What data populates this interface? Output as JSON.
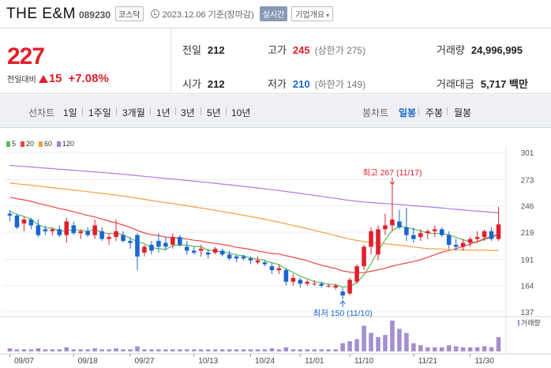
{
  "header": {
    "name": "THE E&M",
    "code": "089230",
    "market": "코스닥",
    "timestamp": "2023.12.06 기준(장마감)",
    "live_button": "실시간",
    "info_dropdown": "기업개요"
  },
  "summary": {
    "price": "227",
    "change_label": "전일대비",
    "change_value": "15",
    "change_pct": "+7.08%",
    "prev_close": {
      "label": "전일",
      "value": "212"
    },
    "open": {
      "label": "시가",
      "value": "212"
    },
    "high": {
      "label": "고가",
      "value": "245",
      "sub": "(상한가 275)"
    },
    "low": {
      "label": "저가",
      "value": "210",
      "sub": "(하한가 149)"
    },
    "volume": {
      "label": "거래량",
      "value": "24,996,995"
    },
    "amount": {
      "label": "거래대금",
      "value": "5,717 백만"
    }
  },
  "tabs": {
    "line_chart": "선차트",
    "periods": [
      "1일",
      "1주일",
      "3개월",
      "1년",
      "3년",
      "5년",
      "10년"
    ],
    "candle_chart": "봉차트",
    "candle_periods": [
      "일봉",
      "주봉",
      "월봉"
    ],
    "active_candle": "일봉"
  },
  "chart_data": {
    "type": "candlestick",
    "moving_averages": [
      {
        "name": "5",
        "color": "#5cb85c"
      },
      {
        "name": "20",
        "color": "#ee4444"
      },
      {
        "name": "60",
        "color": "#f0a040"
      },
      {
        "name": "120",
        "color": "#a77de0"
      }
    ],
    "y_ticks": [
      "301",
      "273",
      "246",
      "219",
      "191",
      "164",
      "137"
    ],
    "y_range": [
      137,
      301
    ],
    "x_ticks": [
      "09/07",
      "09/18",
      "09/27",
      "10/13",
      "10/24",
      "11/01",
      "11/10",
      "11/21",
      "11/30"
    ],
    "annotations": {
      "high": "최고 267 (11/17)",
      "low": "최저 150 (11/10)"
    },
    "volume_label": "거래량",
    "candles": [
      {
        "o": 238,
        "h": 242,
        "l": 230,
        "c": 236
      },
      {
        "o": 236,
        "h": 238,
        "l": 222,
        "c": 224
      },
      {
        "o": 228,
        "h": 235,
        "l": 220,
        "c": 232
      },
      {
        "o": 232,
        "h": 234,
        "l": 222,
        "c": 226
      },
      {
        "o": 226,
        "h": 232,
        "l": 214,
        "c": 216
      },
      {
        "o": 222,
        "h": 226,
        "l": 216,
        "c": 220
      },
      {
        "o": 220,
        "h": 224,
        "l": 216,
        "c": 222
      },
      {
        "o": 222,
        "h": 226,
        "l": 214,
        "c": 216
      },
      {
        "o": 216,
        "h": 234,
        "l": 208,
        "c": 230
      },
      {
        "o": 226,
        "h": 230,
        "l": 216,
        "c": 218
      },
      {
        "o": 218,
        "h": 222,
        "l": 212,
        "c": 220
      },
      {
        "o": 220,
        "h": 224,
        "l": 214,
        "c": 216
      },
      {
        "o": 216,
        "h": 232,
        "l": 212,
        "c": 226
      },
      {
        "o": 220,
        "h": 224,
        "l": 210,
        "c": 212
      },
      {
        "o": 212,
        "h": 218,
        "l": 206,
        "c": 214
      },
      {
        "o": 214,
        "h": 232,
        "l": 210,
        "c": 220
      },
      {
        "o": 216,
        "h": 220,
        "l": 208,
        "c": 210
      },
      {
        "o": 210,
        "h": 214,
        "l": 202,
        "c": 208
      },
      {
        "o": 216,
        "h": 218,
        "l": 180,
        "c": 194
      },
      {
        "o": 198,
        "h": 206,
        "l": 194,
        "c": 204
      },
      {
        "o": 206,
        "h": 210,
        "l": 196,
        "c": 200
      },
      {
        "o": 210,
        "h": 218,
        "l": 198,
        "c": 204
      },
      {
        "o": 208,
        "h": 214,
        "l": 200,
        "c": 204
      },
      {
        "o": 206,
        "h": 218,
        "l": 202,
        "c": 214
      },
      {
        "o": 214,
        "h": 216,
        "l": 204,
        "c": 206
      },
      {
        "o": 204,
        "h": 210,
        "l": 196,
        "c": 200
      },
      {
        "o": 200,
        "h": 204,
        "l": 196,
        "c": 198
      },
      {
        "o": 200,
        "h": 206,
        "l": 194,
        "c": 202
      },
      {
        "o": 198,
        "h": 202,
        "l": 192,
        "c": 196
      },
      {
        "o": 198,
        "h": 204,
        "l": 196,
        "c": 202
      },
      {
        "o": 200,
        "h": 202,
        "l": 194,
        "c": 196
      },
      {
        "o": 196,
        "h": 200,
        "l": 190,
        "c": 192
      },
      {
        "o": 194,
        "h": 196,
        "l": 188,
        "c": 192
      },
      {
        "o": 194,
        "h": 196,
        "l": 190,
        "c": 192
      },
      {
        "o": 192,
        "h": 194,
        "l": 186,
        "c": 190
      },
      {
        "o": 188,
        "h": 194,
        "l": 186,
        "c": 190
      },
      {
        "o": 188,
        "h": 190,
        "l": 184,
        "c": 186
      },
      {
        "o": 184,
        "h": 188,
        "l": 176,
        "c": 180
      },
      {
        "o": 180,
        "h": 186,
        "l": 176,
        "c": 182
      },
      {
        "o": 180,
        "h": 182,
        "l": 164,
        "c": 168
      },
      {
        "o": 168,
        "h": 176,
        "l": 164,
        "c": 172
      },
      {
        "o": 170,
        "h": 172,
        "l": 162,
        "c": 166
      },
      {
        "o": 166,
        "h": 170,
        "l": 164,
        "c": 168
      },
      {
        "o": 166,
        "h": 170,
        "l": 164,
        "c": 166
      },
      {
        "o": 166,
        "h": 168,
        "l": 162,
        "c": 164
      },
      {
        "o": 164,
        "h": 166,
        "l": 162,
        "c": 164
      },
      {
        "o": 162,
        "h": 166,
        "l": 160,
        "c": 164
      },
      {
        "o": 158,
        "h": 162,
        "l": 150,
        "c": 154
      },
      {
        "o": 156,
        "h": 172,
        "l": 154,
        "c": 170
      },
      {
        "o": 168,
        "h": 186,
        "l": 166,
        "c": 184
      },
      {
        "o": 184,
        "h": 206,
        "l": 180,
        "c": 204
      },
      {
        "o": 204,
        "h": 224,
        "l": 196,
        "c": 220
      },
      {
        "o": 196,
        "h": 226,
        "l": 190,
        "c": 222
      },
      {
        "o": 222,
        "h": 238,
        "l": 216,
        "c": 226
      },
      {
        "o": 226,
        "h": 267,
        "l": 220,
        "c": 232
      },
      {
        "o": 230,
        "h": 242,
        "l": 222,
        "c": 224
      },
      {
        "o": 224,
        "h": 244,
        "l": 210,
        "c": 216
      },
      {
        "o": 216,
        "h": 224,
        "l": 208,
        "c": 212
      },
      {
        "o": 214,
        "h": 222,
        "l": 210,
        "c": 218
      },
      {
        "o": 218,
        "h": 222,
        "l": 212,
        "c": 220
      },
      {
        "o": 220,
        "h": 226,
        "l": 214,
        "c": 222
      },
      {
        "o": 222,
        "h": 224,
        "l": 214,
        "c": 216
      },
      {
        "o": 216,
        "h": 220,
        "l": 202,
        "c": 206
      },
      {
        "o": 206,
        "h": 212,
        "l": 200,
        "c": 204
      },
      {
        "o": 204,
        "h": 212,
        "l": 200,
        "c": 208
      },
      {
        "o": 208,
        "h": 214,
        "l": 204,
        "c": 212
      },
      {
        "o": 212,
        "h": 220,
        "l": 208,
        "c": 214
      },
      {
        "o": 214,
        "h": 222,
        "l": 210,
        "c": 220
      },
      {
        "o": 220,
        "h": 224,
        "l": 210,
        "c": 212
      },
      {
        "o": 212,
        "h": 245,
        "l": 210,
        "c": 227
      }
    ],
    "volumes": [
      3,
      2,
      2,
      2,
      3,
      2,
      2,
      2,
      4,
      2,
      2,
      2,
      3,
      2,
      2,
      3,
      2,
      2,
      5,
      2,
      2,
      2,
      2,
      2,
      2,
      2,
      2,
      2,
      2,
      2,
      2,
      2,
      2,
      2,
      2,
      2,
      2,
      3,
      2,
      4,
      2,
      2,
      2,
      2,
      2,
      2,
      2,
      8,
      10,
      12,
      25,
      18,
      14,
      16,
      30,
      22,
      18,
      8,
      6,
      4,
      4,
      4,
      6,
      5,
      4,
      4,
      4,
      5,
      4,
      14
    ]
  }
}
